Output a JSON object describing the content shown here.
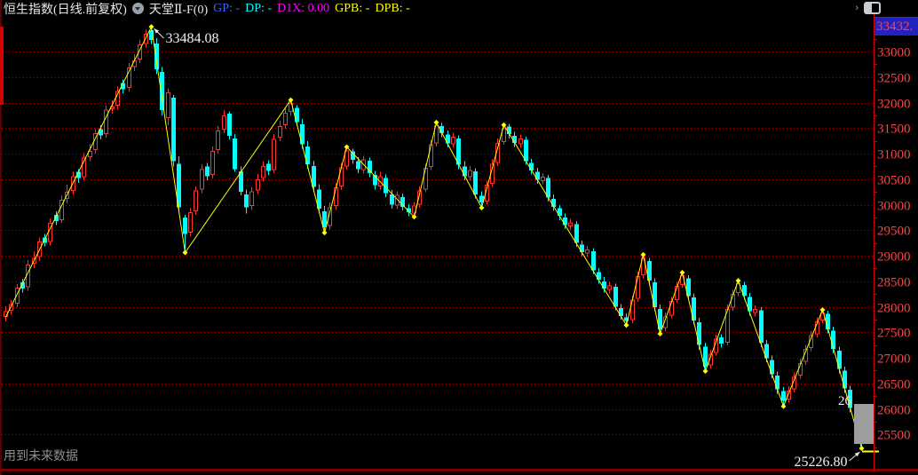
{
  "title_bar": {
    "symbol_title": "恒生指数(日线.前复权)",
    "indicator_title": "天堂Ⅱ-F(0)",
    "fields": [
      {
        "label": "GP:",
        "value": "-",
        "color": "#3366ff"
      },
      {
        "label": "DP:",
        "value": "-",
        "color": "#00ffff"
      },
      {
        "label": "D1X:",
        "value": "0.00",
        "color": "#ff00ff"
      },
      {
        "label": "GPB:",
        "value": "-",
        "color": "#ffff00"
      },
      {
        "label": "DPB:",
        "value": "-",
        "color": "#ffff00"
      }
    ]
  },
  "top_right": {
    "axis_max_label": "33432."
  },
  "axis": {
    "labels": [
      "33000",
      "32500",
      "32000",
      "31500",
      "31000",
      "30500",
      "30000",
      "29500",
      "29000",
      "28500",
      "28000",
      "27500",
      "27000",
      "26500",
      "26000",
      "25500"
    ],
    "text_color": "#ff4242"
  },
  "annotations": {
    "peak_label": "33484.08",
    "low_label": "25226.80",
    "partial_label": "26",
    "watermark": "用到未来数据"
  },
  "chart_data": {
    "type": "candlestick",
    "symbol": "恒生指数",
    "period": "日线",
    "adjustment": "前复权",
    "up_color": "#ff3232",
    "down_color": "#00ffff",
    "zigzag_color": "#ffff00",
    "grid_color": "#b40000",
    "grid_on": true,
    "ylim": [
      24790,
      33680
    ],
    "grid_prices": [
      33000,
      32500,
      32000,
      31500,
      31000,
      30500,
      30000,
      29500,
      29000,
      28500,
      28000,
      27500,
      27000,
      26500,
      26000,
      25500
    ],
    "zigzag": [
      [
        0,
        27800
      ],
      [
        26,
        33484.08
      ],
      [
        32,
        29060
      ],
      [
        51,
        32050
      ],
      [
        57,
        29450
      ],
      [
        61,
        31130
      ],
      [
        73,
        29760
      ],
      [
        77,
        31610
      ],
      [
        85,
        29940
      ],
      [
        89,
        31560
      ],
      [
        111,
        27640
      ],
      [
        114,
        29020
      ],
      [
        117,
        27470
      ],
      [
        121,
        28670
      ],
      [
        125,
        26740
      ],
      [
        131,
        28510
      ],
      [
        139,
        26050
      ],
      [
        146,
        27940
      ],
      [
        153,
        25226.8
      ]
    ],
    "candles": [
      [
        27800,
        28010,
        27710,
        27910
      ],
      [
        27920,
        28130,
        27840,
        28055
      ],
      [
        28060,
        28440,
        27990,
        28370
      ],
      [
        28480,
        28550,
        28280,
        28360
      ],
      [
        28380,
        28910,
        28310,
        28830
      ],
      [
        28840,
        29090,
        28760,
        28955
      ],
      [
        28970,
        29360,
        28900,
        29280
      ],
      [
        29360,
        29430,
        29180,
        29250
      ],
      [
        29270,
        29730,
        29200,
        29640
      ],
      [
        29800,
        29870,
        29600,
        29680
      ],
      [
        29700,
        30180,
        29640,
        30100
      ],
      [
        30110,
        30390,
        30030,
        30255
      ],
      [
        30270,
        30650,
        30200,
        30560
      ],
      [
        30640,
        30700,
        30430,
        30520
      ],
      [
        30540,
        31010,
        30470,
        30920
      ],
      [
        30930,
        31190,
        30850,
        31055
      ],
      [
        31070,
        31480,
        31000,
        31400
      ],
      [
        31480,
        31560,
        31280,
        31360
      ],
      [
        31380,
        31940,
        31310,
        31860
      ],
      [
        31870,
        32040,
        31780,
        31925
      ],
      [
        31940,
        32310,
        31860,
        32230
      ],
      [
        32380,
        32450,
        32180,
        32260
      ],
      [
        32290,
        32770,
        32220,
        32690
      ],
      [
        32700,
        32950,
        32620,
        32825
      ],
      [
        32840,
        33230,
        32770,
        33140
      ],
      [
        33150,
        33430,
        33080,
        33350
      ],
      [
        33420,
        33484.08,
        33150,
        33230
      ],
      [
        33160,
        33260,
        32560,
        32650
      ],
      [
        32600,
        32700,
        31750,
        31850
      ],
      [
        31700,
        32280,
        31560,
        32200
      ],
      [
        32100,
        32150,
        30750,
        30850
      ],
      [
        30800,
        30950,
        29850,
        29950
      ],
      [
        29750,
        29800,
        29060,
        29430
      ],
      [
        29450,
        29930,
        29380,
        29850
      ],
      [
        29870,
        30360,
        29800,
        30280
      ],
      [
        30300,
        30790,
        30230,
        30700
      ],
      [
        30750,
        30820,
        30480,
        30560
      ],
      [
        30580,
        31140,
        30510,
        31050
      ],
      [
        31070,
        31540,
        31000,
        31450
      ],
      [
        31470,
        31850,
        31400,
        31750
      ],
      [
        31780,
        31830,
        31280,
        31350
      ],
      [
        31300,
        31380,
        30640,
        30700
      ],
      [
        30650,
        30750,
        30180,
        30250
      ],
      [
        30200,
        30300,
        29830,
        29950
      ],
      [
        29970,
        30340,
        29900,
        30260
      ],
      [
        30280,
        30600,
        30210,
        30500
      ],
      [
        30520,
        30850,
        30450,
        30760
      ],
      [
        30800,
        30870,
        30580,
        30660
      ],
      [
        30680,
        31380,
        30620,
        31290
      ],
      [
        31310,
        31640,
        31240,
        31540
      ],
      [
        31560,
        31900,
        31490,
        31800
      ],
      [
        31820,
        32050,
        31740,
        31990
      ],
      [
        31900,
        31950,
        31540,
        31620
      ],
      [
        31570,
        31680,
        31100,
        31180
      ],
      [
        31140,
        31240,
        30700,
        30790
      ],
      [
        30760,
        30860,
        30260,
        30350
      ],
      [
        30300,
        30400,
        29830,
        29920
      ],
      [
        29870,
        29970,
        29450,
        29560
      ],
      [
        29580,
        30040,
        29510,
        29950
      ],
      [
        29970,
        30430,
        29900,
        30340
      ],
      [
        30360,
        30820,
        30290,
        30730
      ],
      [
        30750,
        31130,
        30690,
        31060
      ],
      [
        31040,
        31100,
        30800,
        30880
      ],
      [
        30850,
        30930,
        30620,
        30700
      ],
      [
        30680,
        30960,
        30610,
        30890
      ],
      [
        30860,
        30920,
        30540,
        30620
      ],
      [
        30580,
        30660,
        30300,
        30380
      ],
      [
        30360,
        30640,
        30300,
        30560
      ],
      [
        30520,
        30590,
        30150,
        30230
      ],
      [
        30200,
        30290,
        29920,
        30000
      ],
      [
        29980,
        30260,
        29910,
        30190
      ],
      [
        30150,
        30220,
        29890,
        29960
      ],
      [
        29930,
        30010,
        29770,
        29850
      ],
      [
        29830,
        30050,
        29760,
        29980
      ],
      [
        30000,
        30360,
        29940,
        30280
      ],
      [
        30300,
        30800,
        30240,
        30720
      ],
      [
        30740,
        31270,
        30680,
        31180
      ],
      [
        31200,
        31610,
        31140,
        31560
      ],
      [
        31540,
        31600,
        31320,
        31400
      ],
      [
        31370,
        31450,
        31120,
        31200
      ],
      [
        31180,
        31410,
        31110,
        31330
      ],
      [
        31300,
        31360,
        30700,
        30780
      ],
      [
        30750,
        30850,
        30480,
        30560
      ],
      [
        30540,
        30760,
        30470,
        30680
      ],
      [
        30650,
        30710,
        30120,
        30200
      ],
      [
        30170,
        30260,
        29940,
        30040
      ],
      [
        30060,
        30470,
        30000,
        30390
      ],
      [
        30410,
        30890,
        30350,
        30800
      ],
      [
        30820,
        31300,
        30760,
        31210
      ],
      [
        31230,
        31560,
        31170,
        31500
      ],
      [
        31530,
        31580,
        31300,
        31380
      ],
      [
        31350,
        31430,
        31130,
        31210
      ],
      [
        31180,
        31370,
        31110,
        31300
      ],
      [
        31270,
        31330,
        30780,
        30850
      ],
      [
        30820,
        30900,
        30590,
        30670
      ],
      [
        30640,
        30720,
        30410,
        30490
      ],
      [
        30460,
        30620,
        30400,
        30550
      ],
      [
        30520,
        30580,
        30060,
        30140
      ],
      [
        30110,
        30200,
        29880,
        29960
      ],
      [
        29930,
        29990,
        29700,
        29780
      ],
      [
        29750,
        29830,
        29520,
        29600
      ],
      [
        29570,
        29720,
        29510,
        29650
      ],
      [
        29620,
        29680,
        29170,
        29250
      ],
      [
        29220,
        29300,
        28990,
        29070
      ],
      [
        29040,
        29190,
        28970,
        29120
      ],
      [
        29090,
        29150,
        28640,
        28710
      ],
      [
        28680,
        28760,
        28450,
        28530
      ],
      [
        28500,
        28580,
        28280,
        28360
      ],
      [
        28330,
        28490,
        28260,
        28420
      ],
      [
        28390,
        28450,
        27930,
        28000
      ],
      [
        27970,
        28050,
        27750,
        27820
      ],
      [
        27790,
        27870,
        27640,
        27720
      ],
      [
        27740,
        28220,
        27680,
        28140
      ],
      [
        28160,
        28690,
        28100,
        28600
      ],
      [
        28620,
        29020,
        28560,
        28960
      ],
      [
        28900,
        28960,
        28430,
        28510
      ],
      [
        28480,
        28560,
        27910,
        27990
      ],
      [
        27960,
        28040,
        27470,
        27560
      ],
      [
        27580,
        27890,
        27520,
        27810
      ],
      [
        27830,
        28190,
        27770,
        28110
      ],
      [
        28130,
        28490,
        28070,
        28410
      ],
      [
        28430,
        28670,
        28370,
        28620
      ],
      [
        28560,
        28620,
        28130,
        28210
      ],
      [
        28180,
        28260,
        27650,
        27730
      ],
      [
        27700,
        27780,
        27160,
        27250
      ],
      [
        27220,
        27300,
        26740,
        26830
      ],
      [
        26850,
        27160,
        26790,
        27080
      ],
      [
        27100,
        27450,
        27040,
        27370
      ],
      [
        27400,
        27460,
        27200,
        27280
      ],
      [
        27300,
        28040,
        27240,
        27960
      ],
      [
        27980,
        28330,
        27920,
        28250
      ],
      [
        28270,
        28510,
        28210,
        28460
      ],
      [
        28430,
        28490,
        28140,
        28220
      ],
      [
        28190,
        28270,
        27830,
        27910
      ],
      [
        27880,
        28030,
        27810,
        27960
      ],
      [
        27930,
        27990,
        27210,
        27300
      ],
      [
        27270,
        27350,
        26910,
        26990
      ],
      [
        26960,
        27040,
        26600,
        26680
      ],
      [
        26650,
        26730,
        26290,
        26380
      ],
      [
        26350,
        26430,
        26050,
        26160
      ],
      [
        26180,
        26440,
        26120,
        26360
      ],
      [
        26380,
        26710,
        26320,
        26630
      ],
      [
        26650,
        26980,
        26590,
        26900
      ],
      [
        26920,
        27250,
        26860,
        27170
      ],
      [
        27190,
        27520,
        27130,
        27440
      ],
      [
        27460,
        27790,
        27400,
        27710
      ],
      [
        27730,
        27940,
        27670,
        27890
      ],
      [
        27860,
        27920,
        27480,
        27560
      ],
      [
        27530,
        27610,
        27090,
        27170
      ],
      [
        27140,
        27220,
        26700,
        26780
      ],
      [
        26750,
        26830,
        26310,
        26400
      ],
      [
        26370,
        26450,
        25930,
        26020
      ],
      [
        25990,
        26070,
        25540,
        25630
      ],
      [
        25600,
        25680,
        25226.8,
        25350
      ]
    ]
  }
}
